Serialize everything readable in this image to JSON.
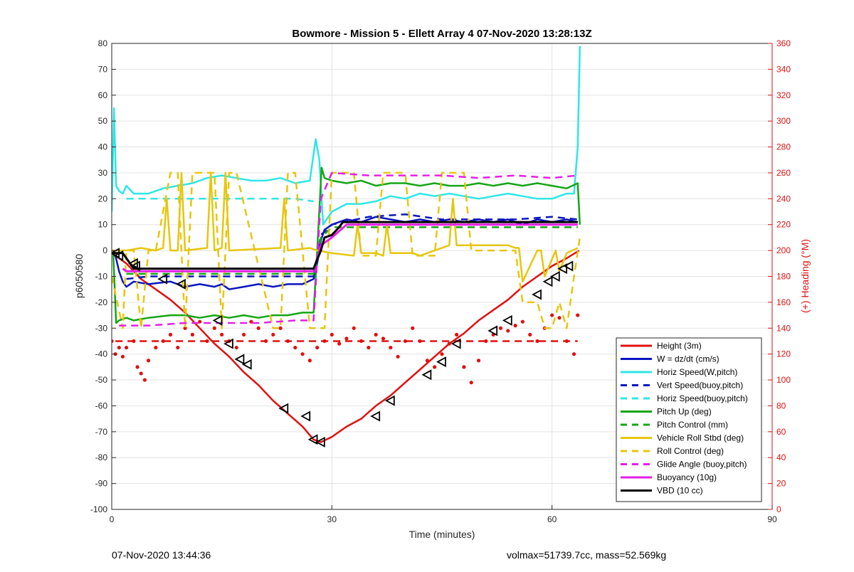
{
  "footer": {
    "timestamp": "07-Nov-2020 13:44:36",
    "stats": "volmax=51739.7cc, mass=52.569kg"
  },
  "chart_data": {
    "type": "line",
    "title": "Bowmore - Mission 5 - Ellett Array 4 07-Nov-2020 13:28:13Z",
    "xlabel": "Time (minutes)",
    "ylabel": "p6050580",
    "y2label": "(+) Heading (°M)",
    "xlim": [
      0,
      90
    ],
    "ylim": [
      -100,
      80
    ],
    "y2lim": [
      0,
      360
    ],
    "xticks": [
      0,
      30,
      60,
      90
    ],
    "yticks": [
      -100,
      -90,
      -80,
      -70,
      -60,
      -50,
      -40,
      -30,
      -20,
      -10,
      0,
      10,
      20,
      30,
      40,
      50,
      60,
      70,
      80
    ],
    "y2ticks": [
      0,
      20,
      40,
      60,
      80,
      100,
      120,
      140,
      160,
      180,
      200,
      220,
      240,
      260,
      280,
      300,
      320,
      340,
      360
    ],
    "grid": true,
    "legend_position": "bottom-right",
    "colors": {
      "red": "#e01010",
      "blue": "#0a16c0",
      "cyan": "#2ee6e6",
      "green": "#16a516",
      "yellow": "#e6c60e",
      "magenta": "#e61ee6",
      "black": "#000000",
      "axis_right": "#e01010"
    },
    "series": [
      {
        "name": "Height (3m)",
        "color": "red",
        "style": "solid",
        "width": 2.5,
        "x": [
          0,
          1,
          2,
          3,
          4,
          6,
          8,
          10,
          12,
          14,
          16,
          18,
          20,
          22,
          24,
          26,
          27.5,
          28.5,
          30,
          32,
          34,
          36,
          38,
          40,
          42,
          44,
          46,
          48,
          50,
          52,
          54,
          56,
          58,
          60,
          62,
          63.7
        ],
        "y": [
          -1,
          -3,
          -5,
          -8,
          -11,
          -15,
          -19,
          -24,
          -30,
          -36,
          -41,
          -47,
          -52,
          -58,
          -63,
          -68,
          -73,
          -74,
          -72,
          -68,
          -65,
          -60,
          -56,
          -51,
          -46,
          -41,
          -36,
          -32,
          -27,
          -23,
          -19,
          -14,
          -10,
          -6,
          -3,
          0
        ]
      },
      {
        "name": "W = dz/dt (cm/s)",
        "color": "blue",
        "style": "solid",
        "width": 2.5,
        "x": [
          0.5,
          1,
          1.5,
          2,
          3,
          5,
          8,
          10,
          12,
          14,
          15,
          16,
          18,
          20,
          22,
          24,
          26,
          27.5,
          28,
          28.5,
          29,
          30,
          32,
          34,
          36,
          38,
          40,
          42,
          44,
          46,
          48,
          50,
          52,
          54,
          56,
          58,
          60,
          62,
          63.5
        ],
        "y": [
          -2,
          -8,
          -12,
          -14,
          -12,
          -13,
          -12,
          -14,
          -13,
          -14,
          -13,
          -15,
          -14,
          -13,
          -14,
          -13,
          -13,
          -11,
          -5,
          4,
          8,
          10,
          12,
          11,
          13,
          12,
          11,
          12,
          11,
          12,
          11,
          12,
          11,
          12,
          10,
          12,
          11,
          12,
          11
        ]
      },
      {
        "name": "Horiz Speed(W,pitch)",
        "color": "cyan",
        "style": "solid",
        "width": 2.5,
        "x": [
          0,
          0.3,
          0.6,
          1,
          1.5,
          2,
          3,
          5,
          7,
          9,
          11,
          13,
          15,
          17,
          19,
          21,
          23,
          25,
          27,
          27.8,
          28.3,
          28.8,
          30,
          32,
          34,
          36,
          38,
          40,
          42,
          44,
          46,
          48,
          50,
          52,
          54,
          56,
          58,
          60,
          62,
          63,
          63.5,
          63.8
        ],
        "y": [
          15,
          55,
          25,
          23,
          22,
          25,
          22,
          22,
          24,
          25,
          26,
          28,
          29,
          28,
          27,
          27,
          28,
          26,
          27,
          43,
          35,
          10,
          15,
          18,
          18,
          19,
          21,
          20,
          22,
          21,
          22,
          21,
          20,
          21,
          22,
          21,
          20,
          20,
          22,
          22,
          40,
          79
        ]
      },
      {
        "name": "Vert Speed(buoy,pitch)",
        "color": "blue",
        "style": "dash",
        "width": 2.5,
        "x": [
          2,
          5,
          10,
          15,
          20,
          25,
          27.5,
          28.5,
          30,
          35,
          40,
          45,
          50,
          55,
          60,
          63.5
        ],
        "y": [
          -11,
          -10,
          -10,
          -10,
          -10,
          -10,
          -10,
          6,
          10,
          13,
          14,
          12,
          12,
          12,
          13,
          12
        ]
      },
      {
        "name": "Horiz Speed(buoy,pitch)",
        "color": "cyan",
        "style": "dash",
        "width": 2.5,
        "x": [
          2,
          5,
          10,
          15,
          20,
          25,
          27.5
        ],
        "y": [
          20,
          20,
          20,
          20,
          20,
          20,
          19
        ]
      },
      {
        "name": "Pitch Up (deg)",
        "color": "green",
        "style": "solid",
        "width": 2.5,
        "x": [
          0.2,
          0.6,
          1,
          2,
          3,
          5,
          8,
          10,
          12,
          14,
          16,
          18,
          20,
          22,
          24,
          26,
          27.5,
          28,
          28.6,
          29,
          30,
          32,
          34,
          36,
          38,
          40,
          42,
          44,
          46,
          48,
          50,
          52,
          54,
          56,
          58,
          60,
          62,
          63.5,
          63.8
        ],
        "y": [
          -1,
          -28,
          -27,
          -26,
          -27,
          -26,
          -25,
          -25,
          -26,
          -25,
          -26,
          -25,
          -26,
          -25,
          -25,
          -24,
          -24,
          0,
          32,
          28,
          27,
          26,
          27,
          25,
          26,
          26,
          25,
          26,
          25,
          25,
          26,
          25,
          26,
          25,
          26,
          25,
          24,
          26,
          10
        ]
      },
      {
        "name": "Pitch Control (mm)",
        "color": "green",
        "style": "dash",
        "width": 2.5,
        "x": [
          2,
          10,
          20,
          27.5,
          28.5,
          30,
          40,
          50,
          60,
          63.5
        ],
        "y": [
          -9,
          -9,
          -9,
          -9,
          5,
          9,
          9,
          9,
          9,
          9
        ]
      },
      {
        "name": "Vehicle Roll Stbd (deg)",
        "color": "yellow",
        "style": "solid",
        "width": 2.5,
        "x": [
          0,
          2,
          4,
          6,
          7,
          7.5,
          8,
          9,
          9.5,
          10,
          13,
          13.5,
          14,
          15,
          15.5,
          16,
          23,
          23.5,
          24,
          27,
          28,
          30,
          33,
          33.5,
          34,
          36,
          37,
          37.5,
          38,
          41,
          42,
          46,
          46.5,
          47,
          54,
          55,
          55.5,
          56,
          58,
          58.5,
          59,
          60.5,
          61,
          62,
          63.5
        ],
        "y": [
          0,
          0,
          1,
          0,
          1,
          20,
          0,
          0,
          30,
          0,
          1,
          30,
          0,
          1,
          30,
          0,
          1,
          20,
          0,
          1,
          0,
          -1,
          -2,
          10,
          -1,
          -1,
          -2,
          10,
          -1,
          -1,
          -2,
          2,
          20,
          2,
          2,
          1,
          1,
          -12,
          0,
          0,
          -10,
          0,
          -8,
          -1,
          1
        ]
      },
      {
        "name": "Roll Control (deg)",
        "color": "yellow",
        "style": "dash",
        "width": 2.5,
        "x": [
          0,
          1.5,
          2,
          3,
          4,
          5,
          6,
          8,
          9,
          10,
          11,
          14,
          15,
          16,
          17,
          22,
          23,
          24,
          25,
          27,
          28,
          29,
          30,
          33,
          34,
          36,
          37,
          40,
          41,
          44,
          45,
          48,
          49,
          55,
          56,
          58,
          59,
          60,
          61,
          62,
          63,
          63.8
        ],
        "y": [
          -10,
          -30,
          0,
          0,
          -30,
          0,
          0,
          30,
          30,
          -30,
          30,
          30,
          -30,
          30,
          30,
          -30,
          -30,
          30,
          30,
          -30,
          -30,
          -30,
          30,
          30,
          -2,
          -2,
          30,
          30,
          -2,
          -2,
          30,
          30,
          0,
          0,
          -20,
          -20,
          -30,
          -30,
          -20,
          -30,
          -10,
          5
        ]
      },
      {
        "name": "Glide Angle (buoy,pitch)",
        "color": "magenta",
        "style": "dash",
        "width": 2.5,
        "x": [
          1,
          5,
          10,
          15,
          20,
          25,
          27.5,
          28.5,
          30,
          35,
          40,
          45,
          50,
          55,
          60,
          63.5
        ],
        "y": [
          -29,
          -29,
          -28,
          -28,
          -28,
          -27,
          -27,
          20,
          30,
          29,
          29,
          29,
          28,
          29,
          28,
          29
        ]
      },
      {
        "name": "Buoyancy (10g)",
        "color": "magenta",
        "style": "solid",
        "width": 3,
        "x": [
          1.5,
          2,
          5,
          10,
          15,
          20,
          25,
          27.5,
          28.5,
          29,
          30,
          32,
          35,
          40,
          50,
          60,
          63.5
        ],
        "y": [
          -7,
          -8,
          -8,
          -8,
          -8,
          -8,
          -8,
          -8,
          2,
          3,
          5,
          10,
          10,
          10,
          10,
          10,
          10
        ]
      },
      {
        "name": "VBD (10 cc)",
        "color": "black",
        "style": "solid",
        "width": 3,
        "x": [
          0,
          1.5,
          3,
          10,
          20,
          27.5,
          28.5,
          29,
          30,
          31,
          31.5,
          35,
          40,
          50,
          60,
          63.5
        ],
        "y": [
          -1,
          -1,
          -7,
          -7,
          -7,
          -7,
          0,
          5,
          6,
          9,
          11,
          11,
          11,
          11,
          11,
          11
        ]
      }
    ],
    "heading": {
      "name": "Heading (dots)",
      "color": "red",
      "axis": "right",
      "x": [
        0,
        0.5,
        1,
        1.5,
        2,
        3,
        3.5,
        4,
        4.5,
        5,
        6,
        7,
        8,
        9,
        10,
        11,
        12,
        13,
        14,
        15,
        16,
        17,
        18,
        19,
        20,
        21,
        22,
        23,
        24,
        25,
        26,
        27,
        28,
        29,
        30,
        31,
        32,
        33,
        34,
        35,
        36,
        37,
        38,
        39,
        40,
        41,
        42,
        43,
        44,
        45,
        46,
        47,
        48,
        49,
        50,
        51,
        52,
        53,
        54,
        55,
        56,
        57,
        58,
        59,
        60,
        61,
        62,
        63,
        63.5
      ],
      "y": [
        130,
        120,
        125,
        118,
        125,
        130,
        110,
        105,
        100,
        115,
        125,
        130,
        135,
        125,
        140,
        135,
        145,
        130,
        140,
        135,
        130,
        125,
        135,
        145,
        140,
        130,
        135,
        140,
        130,
        125,
        120,
        115,
        125,
        130,
        135,
        128,
        132,
        140,
        130,
        125,
        135,
        132,
        125,
        118,
        130,
        140,
        130,
        115,
        110,
        120,
        128,
        135,
        110,
        98,
        115,
        130,
        135,
        140,
        138,
        142,
        145,
        135,
        130,
        140,
        150,
        148,
        130,
        120,
        150
      ]
    },
    "heading_mean": {
      "name": "Heading mean",
      "color": "red",
      "style": "dash",
      "axis": "right",
      "y": 130,
      "x": [
        0.5,
        63.5
      ]
    },
    "markers": {
      "name": "Height markers",
      "shape": "triangle-left",
      "x": [
        0.5,
        1,
        3,
        3.3,
        7,
        9.5,
        14.5,
        16,
        17.5,
        18.5,
        23.5,
        26.5,
        27.5,
        28.5,
        36,
        38,
        43,
        45,
        47,
        52,
        54,
        58,
        59.5,
        60.5,
        61.5,
        62.3
      ],
      "y": [
        -1,
        -2,
        -5,
        -6,
        -11,
        -13,
        -27,
        -36,
        -42,
        -44,
        -61,
        -64,
        -73,
        -74,
        -64,
        -58,
        -48,
        -43,
        -36,
        -31,
        -27,
        -17,
        -12,
        -10,
        -7,
        -6
      ]
    }
  }
}
